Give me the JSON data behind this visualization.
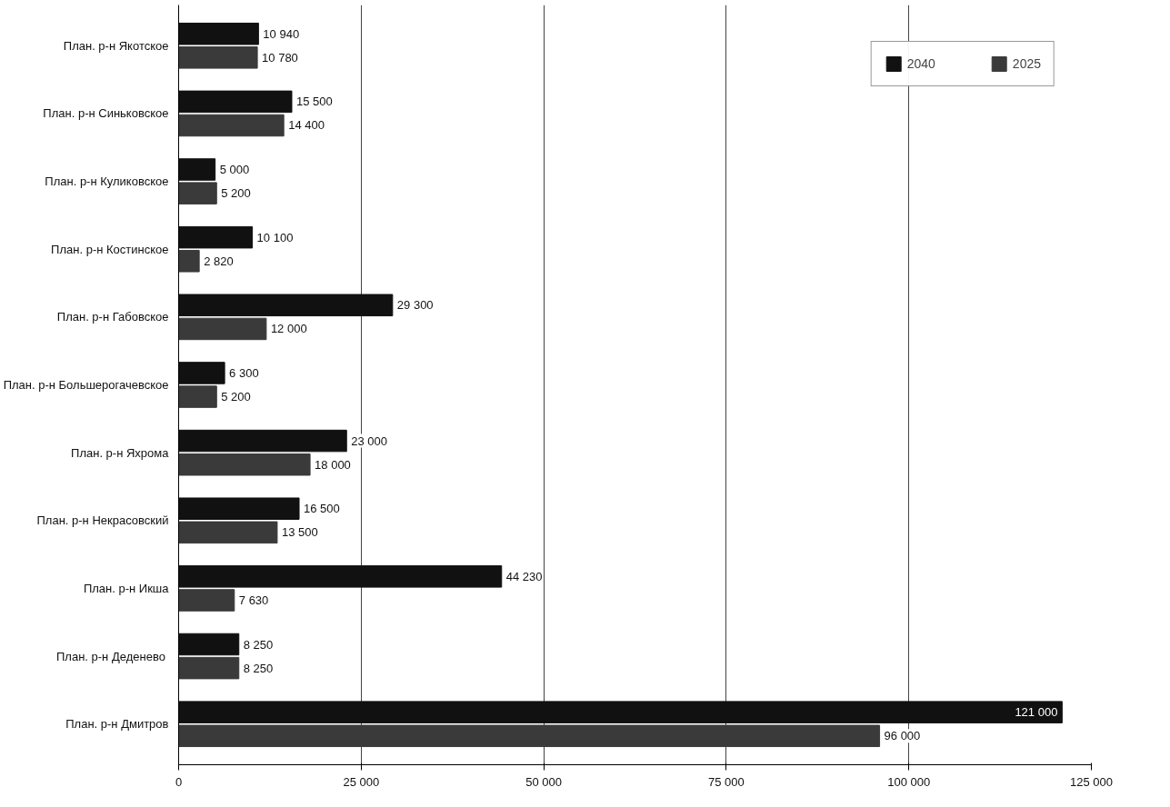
{
  "chart_data": {
    "type": "bar",
    "orientation": "horizontal",
    "categories": [
      "План. р-н Якотское",
      "План. р-н Синьковское",
      "План. р-н Куликовское",
      "План. р-н Костинское",
      "План. р-н Габовское",
      "План. р-н Большерогачевское",
      "План. р-н Яхрома",
      "План. р-н Некрасовский",
      "План. р-н Икша",
      "План. р-н  Деденево",
      "План. р-н Дмитров"
    ],
    "series": [
      {
        "name": "2040",
        "color": "#111111",
        "values": [
          10940,
          15500,
          5000,
          10100,
          29300,
          6300,
          23000,
          16500,
          44230,
          8250,
          121000
        ],
        "value_labels": [
          "10 940",
          "15 500",
          "5 000",
          "10 100",
          "29 300",
          "6 300",
          "23 000",
          "16 500",
          "44 230",
          "8 250",
          "121 000"
        ]
      },
      {
        "name": "2025",
        "color": "#3a3a3a",
        "values": [
          10780,
          14400,
          5200,
          2820,
          12000,
          5200,
          18000,
          13500,
          7630,
          8250,
          96000
        ],
        "value_labels": [
          "10 780",
          "14 400",
          "5 200",
          "2 820",
          "12 000",
          "5 200",
          "18 000",
          "13 500",
          "7 630",
          "8 250",
          "96 000"
        ]
      }
    ],
    "xlim": [
      0,
      125000
    ],
    "xticks": [
      {
        "value": 0,
        "label": "0"
      },
      {
        "value": 25000,
        "label": "25 000"
      },
      {
        "value": 50000,
        "label": "50 000"
      },
      {
        "value": 75000,
        "label": "75 000"
      },
      {
        "value": 100000,
        "label": "100 000"
      },
      {
        "value": 125000,
        "label": "125 000"
      }
    ],
    "grid": "x",
    "legend": "top right"
  }
}
